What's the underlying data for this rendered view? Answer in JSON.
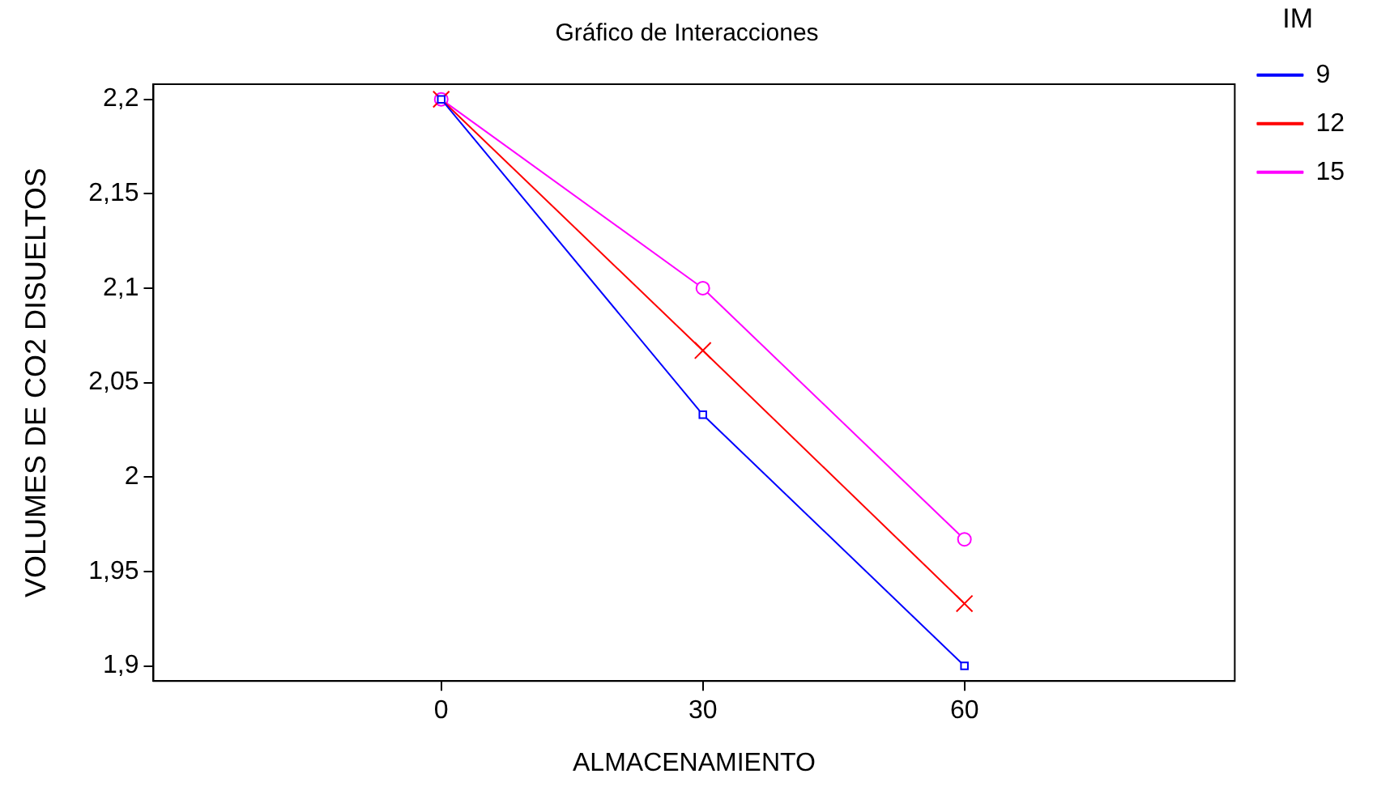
{
  "chart_data": {
    "type": "line",
    "title": "Gráfico de Interacciones",
    "xlabel": "ALMACENAMIENTO",
    "ylabel": "VOLUMES DE CO2 DISUELTOS",
    "legend_title": "IM",
    "x": [
      0,
      30,
      60
    ],
    "series": [
      {
        "name": "9",
        "color": "#0000ff",
        "marker": "square",
        "values": [
          2.2,
          2.033,
          1.9
        ]
      },
      {
        "name": "12",
        "color": "#ff0000",
        "marker": "cross",
        "values": [
          2.2,
          2.067,
          1.933
        ]
      },
      {
        "name": "15",
        "color": "#ff00ff",
        "marker": "circle",
        "values": [
          2.2,
          2.1,
          1.967
        ]
      }
    ],
    "xlim": [
      -33,
      91
    ],
    "xticks": [
      0,
      30,
      60
    ],
    "ylim": [
      1.892,
      2.208
    ],
    "yticks": [
      {
        "value": 1.9,
        "label": "1,9"
      },
      {
        "value": 1.95,
        "label": "1,95"
      },
      {
        "value": 2,
        "label": "2"
      },
      {
        "value": 2.05,
        "label": "2,05"
      },
      {
        "value": 2.1,
        "label": "2,1"
      },
      {
        "value": 2.15,
        "label": "2,15"
      },
      {
        "value": 2.2,
        "label": "2,2"
      }
    ],
    "grid": false,
    "legend": "right",
    "line_style": "solid"
  }
}
